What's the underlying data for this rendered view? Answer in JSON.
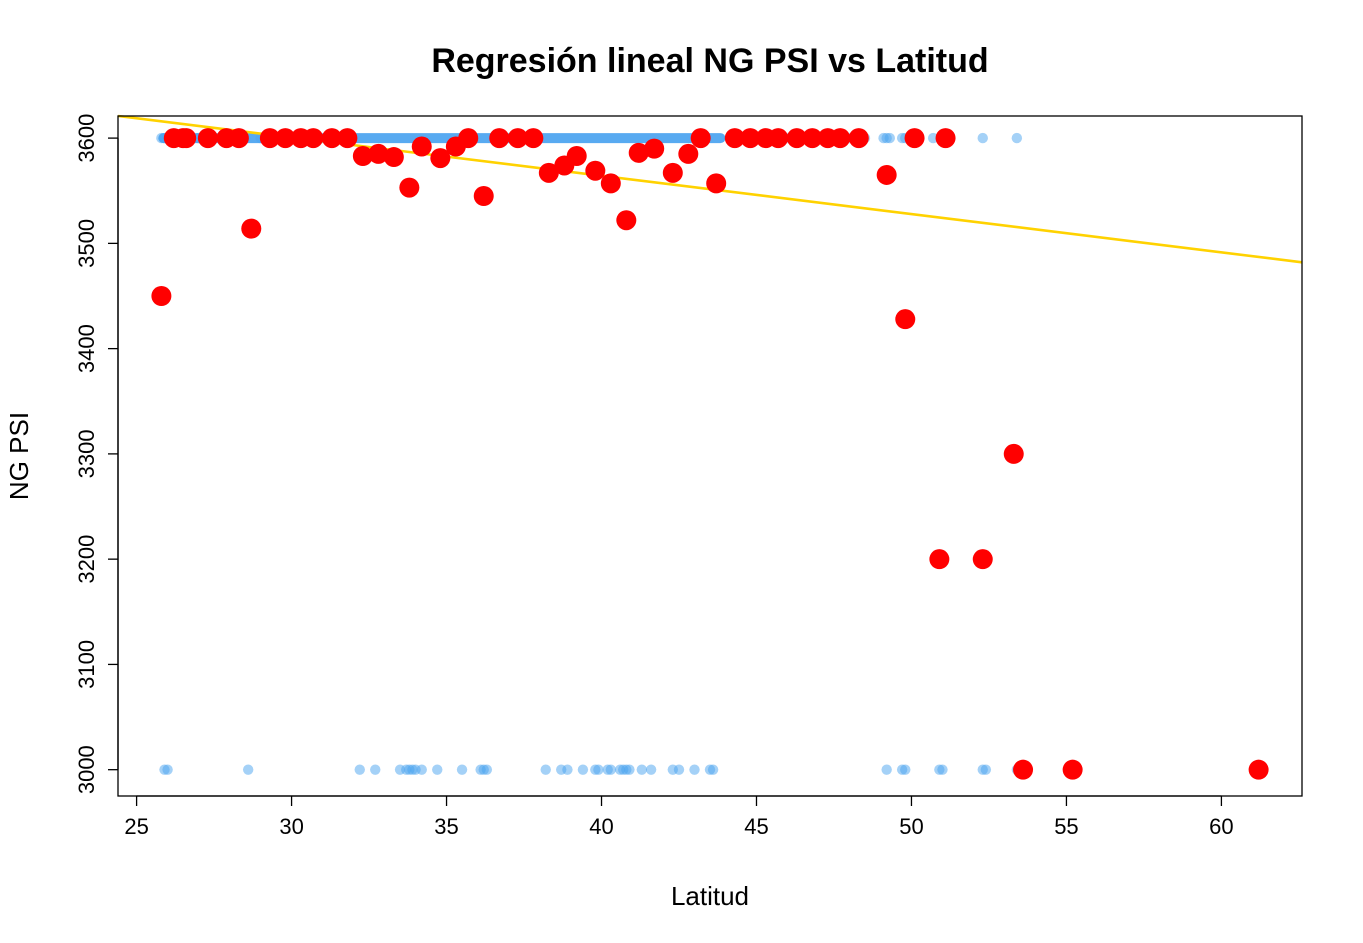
{
  "chart_data": {
    "type": "scatter",
    "title": "Regresión lineal NG PSI vs Latitud",
    "xlabel": "Latitud",
    "ylabel": "NG PSI",
    "xlim": [
      24.4,
      62.6
    ],
    "ylim": [
      2975,
      3621
    ],
    "x_ticks": [
      "25",
      "30",
      "35",
      "40",
      "45",
      "50",
      "55",
      "60"
    ],
    "y_ticks": [
      "3000",
      "3100",
      "3200",
      "3300",
      "3400",
      "3500",
      "3600"
    ],
    "grid": false,
    "legend": "none",
    "colors": {
      "raw_points": "#4aa3f0",
      "mean_points": "#ff0000",
      "regression_line": "#ffd200",
      "frame": "#000000"
    },
    "series": [
      {
        "style": "light-blue small transparent points",
        "band_at_3600": [
          25.7,
          44.0
        ],
        "points": [
          [
            25.8,
            3600
          ],
          [
            25.9,
            3600
          ],
          [
            26.0,
            3600
          ],
          [
            26.2,
            3600
          ],
          [
            26.5,
            3600
          ],
          [
            27.0,
            3600
          ],
          [
            27.5,
            3600
          ],
          [
            28.0,
            3600
          ],
          [
            28.5,
            3600
          ],
          [
            29.0,
            3600
          ],
          [
            44.5,
            3600
          ],
          [
            45.0,
            3600
          ],
          [
            46.0,
            3600
          ],
          [
            46.5,
            3600
          ],
          [
            47.0,
            3600
          ],
          [
            48.0,
            3600
          ],
          [
            48.5,
            3600
          ],
          [
            49.1,
            3600
          ],
          [
            49.2,
            3600
          ],
          [
            49.3,
            3600
          ],
          [
            49.7,
            3600
          ],
          [
            49.8,
            3600
          ],
          [
            50.1,
            3600
          ],
          [
            50.7,
            3600
          ],
          [
            51.0,
            3600
          ],
          [
            51.2,
            3600
          ],
          [
            52.3,
            3600
          ],
          [
            53.4,
            3600
          ],
          [
            25.9,
            3000
          ],
          [
            26.0,
            3000
          ],
          [
            28.6,
            3000
          ],
          [
            32.2,
            3000
          ],
          [
            32.7,
            3000
          ],
          [
            33.5,
            3000
          ],
          [
            33.7,
            3000
          ],
          [
            33.8,
            3000
          ],
          [
            33.9,
            3000
          ],
          [
            34.0,
            3000
          ],
          [
            34.2,
            3000
          ],
          [
            34.7,
            3000
          ],
          [
            35.5,
            3000
          ],
          [
            36.1,
            3000
          ],
          [
            36.2,
            3000
          ],
          [
            36.3,
            3000
          ],
          [
            38.2,
            3000
          ],
          [
            38.7,
            3000
          ],
          [
            38.9,
            3000
          ],
          [
            39.4,
            3000
          ],
          [
            39.8,
            3000
          ],
          [
            39.9,
            3000
          ],
          [
            40.2,
            3000
          ],
          [
            40.3,
            3000
          ],
          [
            40.6,
            3000
          ],
          [
            40.7,
            3000
          ],
          [
            40.8,
            3000
          ],
          [
            40.9,
            3000
          ],
          [
            41.3,
            3000
          ],
          [
            41.6,
            3000
          ],
          [
            42.3,
            3000
          ],
          [
            42.5,
            3000
          ],
          [
            43.0,
            3000
          ],
          [
            43.5,
            3000
          ],
          [
            43.6,
            3000
          ],
          [
            49.2,
            3000
          ],
          [
            49.7,
            3000
          ],
          [
            49.8,
            3000
          ],
          [
            50.9,
            3000
          ],
          [
            51.0,
            3000
          ],
          [
            52.3,
            3000
          ],
          [
            52.4,
            3000
          ],
          [
            53.4,
            3000
          ]
        ]
      },
      {
        "style": "red large points",
        "points": [
          [
            25.8,
            3450
          ],
          [
            26.2,
            3600
          ],
          [
            26.5,
            3600
          ],
          [
            26.6,
            3600
          ],
          [
            27.3,
            3600
          ],
          [
            27.9,
            3600
          ],
          [
            28.3,
            3600
          ],
          [
            28.7,
            3514
          ],
          [
            29.3,
            3600
          ],
          [
            29.8,
            3600
          ],
          [
            30.3,
            3600
          ],
          [
            30.7,
            3600
          ],
          [
            31.3,
            3600
          ],
          [
            31.8,
            3600
          ],
          [
            32.3,
            3583
          ],
          [
            32.8,
            3585
          ],
          [
            33.3,
            3582
          ],
          [
            33.8,
            3553
          ],
          [
            34.2,
            3592
          ],
          [
            34.8,
            3581
          ],
          [
            35.3,
            3592
          ],
          [
            35.7,
            3600
          ],
          [
            36.2,
            3545
          ],
          [
            36.7,
            3600
          ],
          [
            37.3,
            3600
          ],
          [
            37.8,
            3600
          ],
          [
            38.3,
            3567
          ],
          [
            38.8,
            3574
          ],
          [
            39.2,
            3583
          ],
          [
            39.8,
            3569
          ],
          [
            40.3,
            3557
          ],
          [
            40.8,
            3522
          ],
          [
            41.2,
            3586
          ],
          [
            41.7,
            3590
          ],
          [
            42.3,
            3567
          ],
          [
            42.8,
            3585
          ],
          [
            43.2,
            3600
          ],
          [
            43.7,
            3557
          ],
          [
            44.3,
            3600
          ],
          [
            44.8,
            3600
          ],
          [
            45.3,
            3600
          ],
          [
            45.7,
            3600
          ],
          [
            46.3,
            3600
          ],
          [
            46.8,
            3600
          ],
          [
            47.3,
            3600
          ],
          [
            47.7,
            3600
          ],
          [
            48.3,
            3600
          ],
          [
            49.2,
            3565
          ],
          [
            49.8,
            3428
          ],
          [
            50.1,
            3600
          ],
          [
            50.9,
            3200
          ],
          [
            51.1,
            3600
          ],
          [
            52.3,
            3200
          ],
          [
            53.3,
            3300
          ],
          [
            53.6,
            3000
          ],
          [
            55.2,
            3000
          ],
          [
            61.2,
            3000
          ]
        ]
      }
    ],
    "regression_line": {
      "points": [
        [
          24.4,
          3621
        ],
        [
          62.6,
          3482
        ]
      ]
    }
  }
}
